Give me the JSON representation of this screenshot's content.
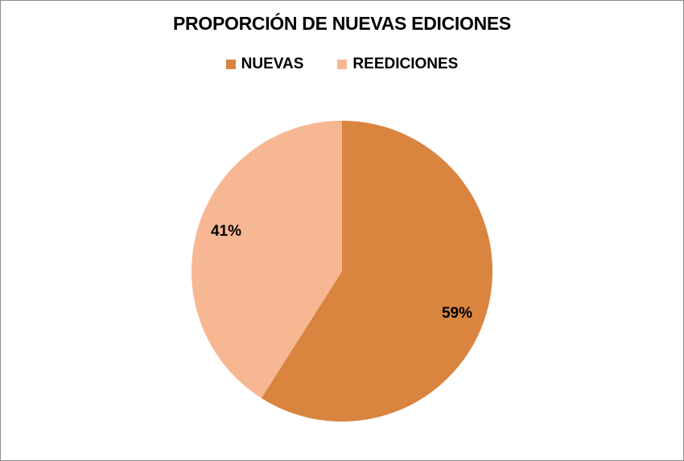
{
  "chart_data": {
    "type": "pie",
    "title": "PROPORCIÓN DE NUEVAS EDICIONES",
    "categories": [
      "NUEVAS",
      "REEDICIONES"
    ],
    "values": [
      59,
      41
    ],
    "data_labels": [
      "59%",
      "41%"
    ],
    "colors": [
      "#D9843F",
      "#F8B793"
    ],
    "legend_position": "top",
    "start_angle": "12 o'clock",
    "direction": "clockwise"
  }
}
